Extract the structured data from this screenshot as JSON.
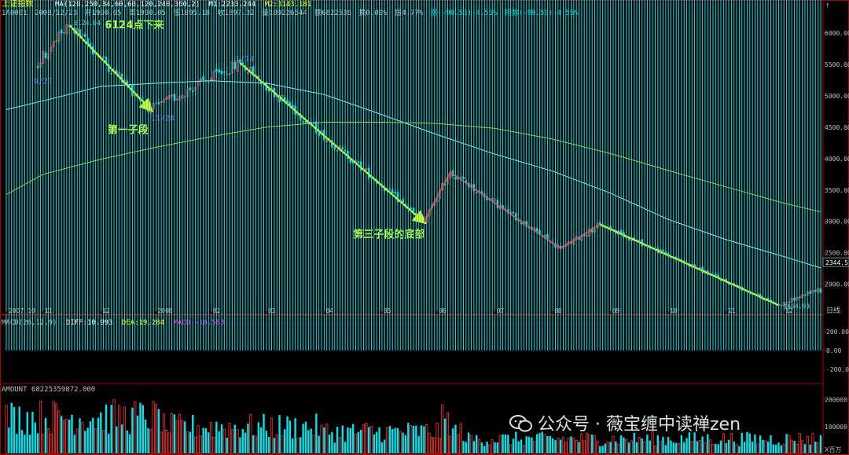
{
  "header": {
    "index_name": "上证指数",
    "ma_params": "MA(120,250,34,60,60,120,240,360,2)",
    "m1": "M1:2233.244",
    "m2": "M2:3143.181",
    "code": "1A0001",
    "date": "2008/12/23",
    "open": "开1990.05",
    "high": "高1990.05",
    "low": "低1895.18",
    "close": "收1897.32",
    "volume": "量109226544",
    "amount": "额6822536",
    "turnover": "换0.00%",
    "amplitude": "振4.77%",
    "change": "涨(-90.53)-4.55%",
    "index_change": "指数(-90.53)-4.55%"
  },
  "macd_header": {
    "params": "MACD(26,12,9)",
    "diff": "DIFF:10.993",
    "dea": "DEA:19.284",
    "macd": "MACD:-16.583"
  },
  "amount_header": "AMOUNT 68225359872.000",
  "watermark": "公众号 · 薇宝缠中读禅zen",
  "colors": {
    "up": "#ff3333",
    "down": "#00e5ee",
    "ma_long": "#e6c31a",
    "ma_mid": "#e8e8e8",
    "annot_yellow": "#ffff00",
    "annot_red": "#ff2020",
    "label_purple": "#cc44cc",
    "axis": "#b00000"
  },
  "chart_data": [
    {
      "type": "candlestick",
      "title": "上证指数",
      "x_ticks": [
        "2007 10",
        "11",
        "12",
        "2008",
        "02",
        "03",
        "04",
        "05",
        "06",
        "07",
        "08",
        "09",
        "10",
        "11",
        "12"
      ],
      "x_unit_label": "日线",
      "y_ticks": [
        2000,
        2500,
        3000,
        3500,
        4000,
        4500,
        5000,
        5500,
        6000
      ],
      "ylim": [
        1620,
        6250
      ],
      "current_price_label": "2344.5",
      "key_points": [
        {
          "date": "2007-09-27",
          "price": 5470,
          "label": "9/27"
        },
        {
          "date": "2007-10-16",
          "price": 6124.04,
          "label": "6124.04"
        },
        {
          "date": "2007-11-28",
          "price": 4778,
          "label": "11/28"
        },
        {
          "date": "2008-01-14",
          "price": 5522,
          "label": "1/14"
        },
        {
          "date": "2008-04-22",
          "price": 2990
        },
        {
          "date": "2008-05-06",
          "price": 3786
        },
        {
          "date": "2008-07-03",
          "price": 2566
        },
        {
          "date": "2008-07-25",
          "price": 2952
        },
        {
          "date": "2008-10-28",
          "price": 1664.93,
          "label": "1664.93"
        }
      ],
      "annotations": [
        {
          "text": "6124点下来",
          "color": "yellow"
        },
        {
          "text": "第一子段",
          "color": "yellow"
        },
        {
          "text": "第三子段的底部",
          "color": "yellow"
        }
      ],
      "ma_series": [
        {
          "color": "white",
          "values_at_ticks": [
            4780,
            4920,
            5150,
            5200,
            5240,
            5200,
            5020,
            4700,
            4380,
            4070,
            3800,
            3450,
            3030,
            2710,
            2440,
            2260
          ]
        },
        {
          "color": "yellow",
          "values_at_ticks": [
            3430,
            3750,
            3990,
            4180,
            4350,
            4500,
            4580,
            4580,
            4560,
            4480,
            4310,
            4080,
            3810,
            3550,
            3290,
            3150
          ]
        }
      ]
    },
    {
      "type": "bar",
      "title": "MACD(26,12,9)",
      "series": [
        {
          "name": "DIFF",
          "value": 10.993
        },
        {
          "name": "DEA",
          "value": 19.284
        },
        {
          "name": "MACD",
          "value": -16.583
        }
      ],
      "y_ticks": [
        -200,
        0,
        200
      ],
      "ylim": [
        -300,
        300
      ]
    },
    {
      "type": "bar",
      "title": "AMOUNT",
      "y_ticks": [
        100000,
        200000
      ],
      "y_unit": "X百万",
      "ylim": [
        0,
        240000
      ]
    }
  ]
}
